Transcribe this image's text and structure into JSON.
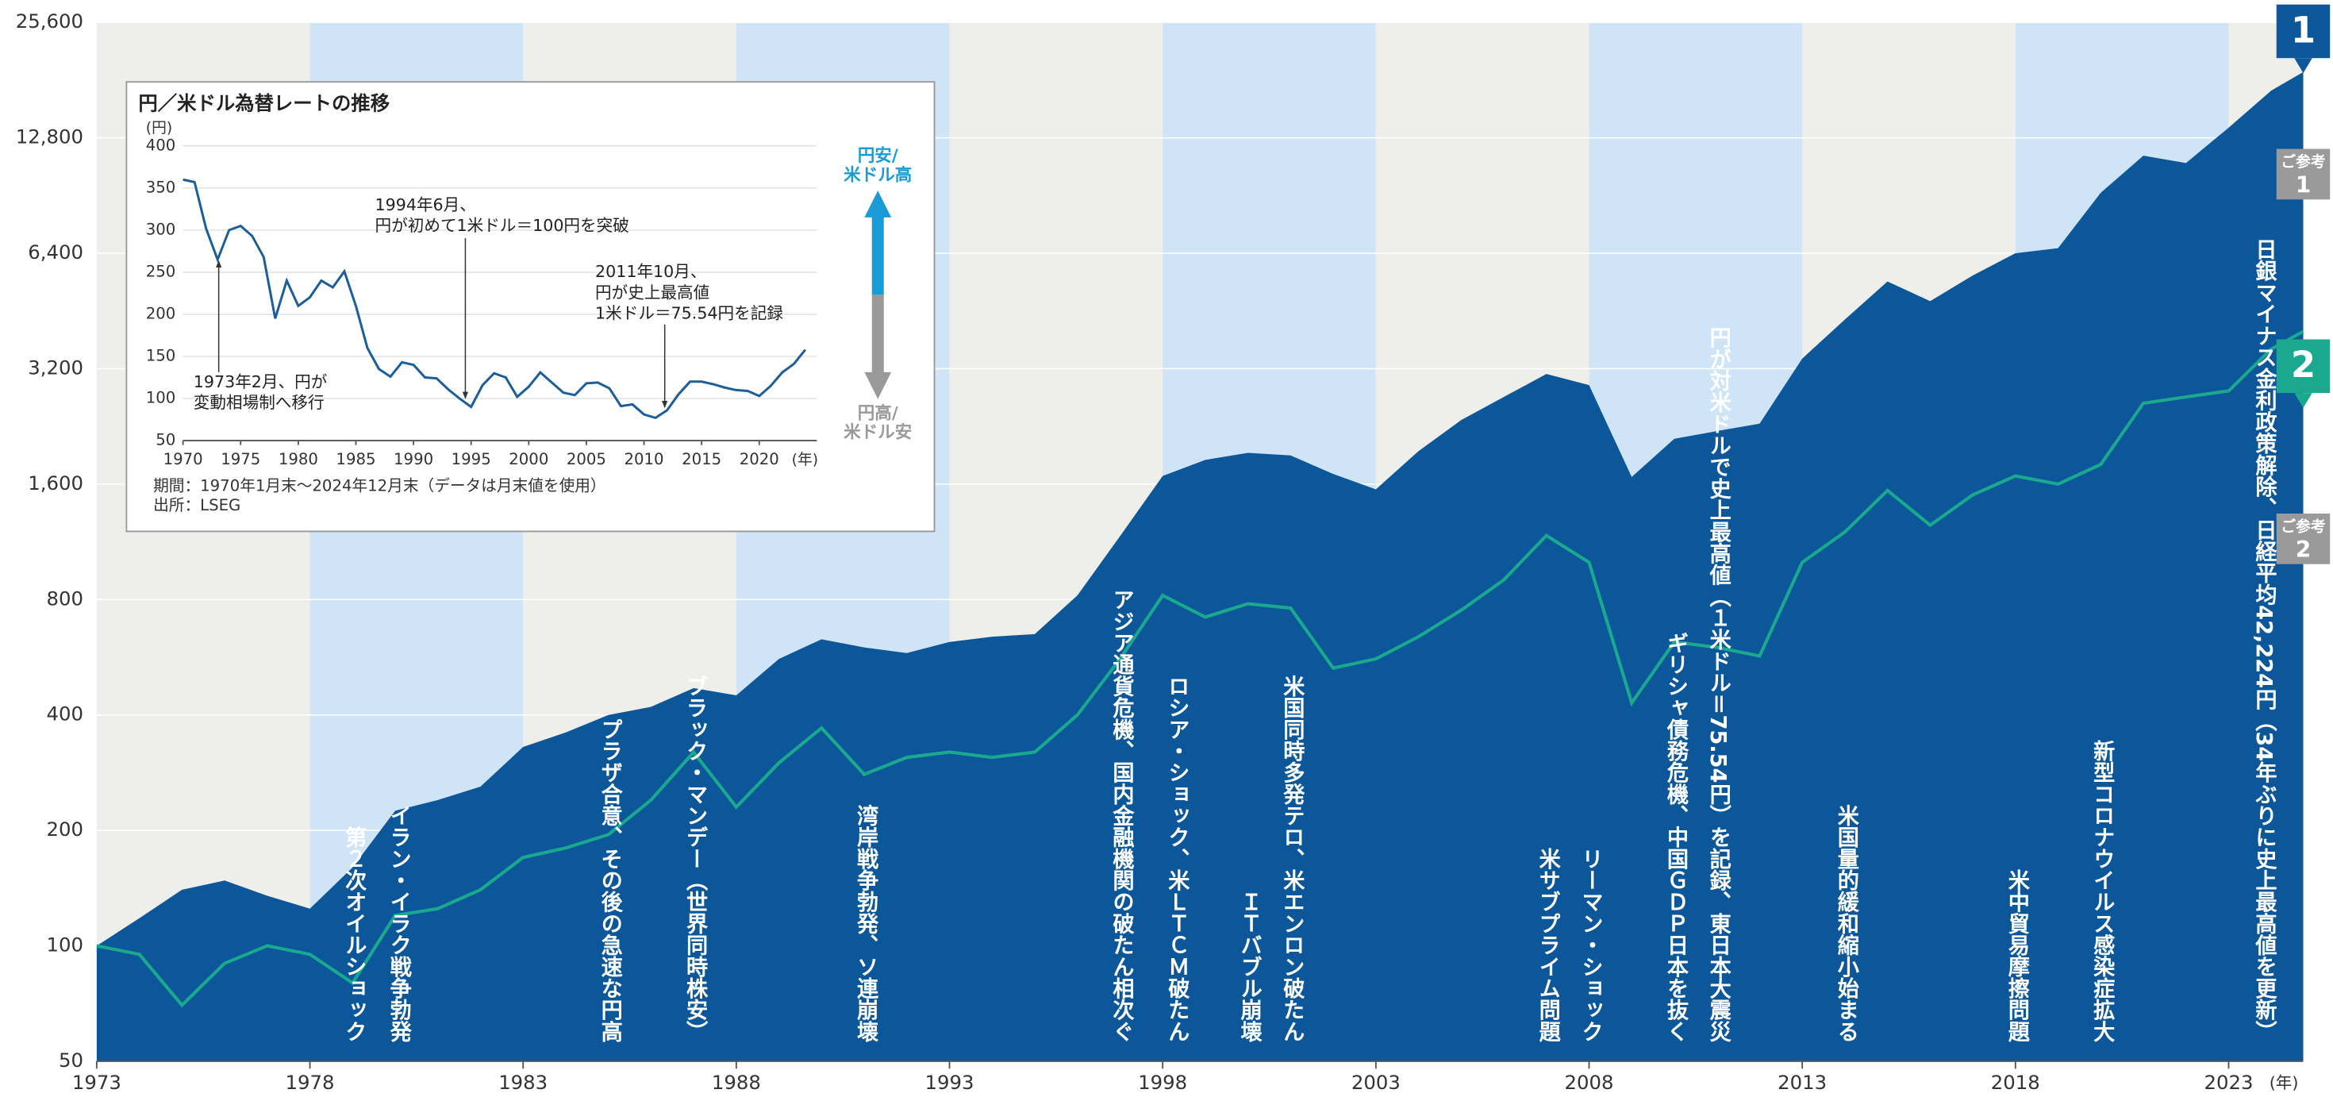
{
  "chart_data": [
    {
      "type": "area",
      "log_scale": true,
      "x": [
        1973,
        1974,
        1975,
        1976,
        1977,
        1978,
        1979,
        1980,
        1981,
        1982,
        1983,
        1984,
        1985,
        1986,
        1987,
        1988,
        1989,
        1990,
        1991,
        1992,
        1993,
        1994,
        1995,
        1996,
        1997,
        1998,
        1999,
        2000,
        2001,
        2002,
        2003,
        2004,
        2005,
        2006,
        2007,
        2008,
        2009,
        2010,
        2011,
        2012,
        2013,
        2014,
        2015,
        2016,
        2017,
        2018,
        2019,
        2020,
        2021,
        2022,
        2023,
        2024,
        2024.75
      ],
      "xlim": [
        1973,
        2024.75
      ],
      "xticks": [
        1973,
        1978,
        1983,
        1988,
        1993,
        1998,
        2003,
        2008,
        2013,
        2018,
        2023
      ],
      "x_label": "(年)",
      "ylim": [
        50,
        25600
      ],
      "yticks": [
        50,
        100,
        200,
        400,
        800,
        {
          "value": 1600,
          "label": "1,600"
        },
        {
          "value": 3200,
          "label": "3,200"
        },
        {
          "value": 6400,
          "label": "6,400"
        },
        {
          "value": 12800,
          "label": "12,800"
        },
        {
          "value": 25600,
          "label": "25,600"
        }
      ],
      "band_colors": [
        "#eeeeea",
        "#cfe4f6"
      ],
      "series": [
        {
          "name": "1",
          "type": "area",
          "color": "#0c5799",
          "values": [
            100,
            118,
            140,
            148,
            135,
            125,
            160,
            225,
            240,
            260,
            330,
            360,
            400,
            420,
            470,
            450,
            560,
            630,
            600,
            580,
            620,
            640,
            650,
            820,
            1170,
            1680,
            1850,
            1930,
            1900,
            1700,
            1550,
            1950,
            2350,
            2700,
            3100,
            2900,
            1670,
            2100,
            2200,
            2300,
            3400,
            4300,
            5400,
            4800,
            5600,
            6400,
            6600,
            9200,
            11500,
            11000,
            13600,
            17000,
            19000
          ]
        },
        {
          "name": "2",
          "type": "line",
          "color": "#1aa88f",
          "values": [
            100,
            95,
            70,
            90,
            100,
            95,
            80,
            120,
            125,
            140,
            170,
            180,
            195,
            240,
            320,
            230,
            300,
            370,
            280,
            310,
            320,
            310,
            320,
            400,
            560,
            820,
            720,
            780,
            760,
            530,
            560,
            640,
            750,
            900,
            1175,
            1000,
            430,
            620,
            600,
            570,
            1000,
            1200,
            1540,
            1250,
            1500,
            1680,
            1600,
            1800,
            2600,
            2700,
            2800,
            3600,
            4000
          ]
        }
      ],
      "references": [
        [
          "ご参考",
          "1"
        ],
        [
          "ご参考",
          "2"
        ]
      ],
      "annotations": [
        {
          "text": "第２次オイルショック",
          "x": 1979.0
        },
        {
          "text": "イラン・イラク戦争勃発",
          "x": 1980.05
        },
        {
          "text": "プラザ合意、その後の急速な円高",
          "x": 1985
        },
        {
          "text": "ブラック・マンデー（世界同時株安）",
          "x": 1987
        },
        {
          "text": "湾岸戦争勃発、ソ連崩壊",
          "x": 1991
        },
        {
          "text": "アジア通貨危機、国内金融機関の破たん相次ぐ",
          "x": 1997
        },
        {
          "text": "ロシア・ショック、米ＬＴＣＭ破たん",
          "x": 1998.3
        },
        {
          "text": "ＩＴバブル崩壊",
          "x": 2000
        },
        {
          "text": "米国同時多発テロ、米エンロン破たん",
          "x": 2001
        },
        {
          "text": "米サブプライム問題",
          "x": 2007
        },
        {
          "text": "リーマン・ショック",
          "x": 2008
        },
        {
          "text": "ギリシャ債務危機、中国ＧＤＰ日本を抜く",
          "x": 2010
        },
        {
          "text": "円が対米ドルで史上最高値（１米ドル＝75.54円）を記録、東日本大震災",
          "x": 2011
        },
        {
          "text": "米国量的緩和縮小始まる",
          "x": 2014
        },
        {
          "text": "米中貿易摩擦問題",
          "x": 2018
        },
        {
          "text": "新型コロナウイルス感染症拡大",
          "x": 2020
        },
        {
          "text": "日銀マイナス金利政策解除、日経平均42,224円（34年ぶりに史上最高値を更新）",
          "x": 2023.8
        }
      ]
    },
    {
      "type": "line",
      "title": "円／米ドル為替レートの推移",
      "unit_label": "(円)",
      "color": "#1b5e9a",
      "x": [
        1970,
        1971,
        1972,
        1973,
        1974,
        1975,
        1976,
        1977,
        1978,
        1979,
        1980,
        1981,
        1982,
        1983,
        1984,
        1985,
        1986,
        1987,
        1988,
        1989,
        1990,
        1991,
        1992,
        1993,
        1994,
        1995,
        1996,
        1997,
        1998,
        1999,
        2000,
        2001,
        2002,
        2003,
        2004,
        2005,
        2006,
        2007,
        2008,
        2009,
        2010,
        2011,
        2012,
        2013,
        2014,
        2015,
        2016,
        2017,
        2018,
        2019,
        2020,
        2021,
        2022,
        2023,
        2024
      ],
      "values": [
        360,
        357,
        302,
        265,
        300,
        305,
        293,
        268,
        195,
        240,
        210,
        220,
        240,
        232,
        251,
        210,
        160,
        135,
        126,
        143,
        140,
        125,
        124,
        111,
        100,
        90,
        116,
        130,
        125,
        102,
        114,
        131,
        119,
        107,
        104,
        118,
        119,
        112,
        91,
        93,
        81,
        77,
        86,
        105,
        120,
        120,
        117,
        113,
        110,
        109,
        103,
        115,
        131,
        141,
        158
      ],
      "xlim": [
        1970,
        2025
      ],
      "xticks": [
        1970,
        1975,
        1980,
        1985,
        1990,
        1995,
        2000,
        2005,
        2010,
        2015,
        2020
      ],
      "x_label": "(年)",
      "ylim": [
        50,
        400
      ],
      "yticks": [
        50,
        100,
        150,
        200,
        250,
        300,
        350,
        400
      ],
      "annotations": [
        {
          "lines": [
            "1973年2月、円が",
            "変動相場制へ移行"
          ],
          "x": 1973.1
        },
        {
          "lines": [
            "1994年6月、",
            "円が初めて1米ドル＝100円を突破"
          ],
          "x": 1994.5
        },
        {
          "lines": [
            "2011年10月、",
            "円が史上最高値",
            "1米ドル＝75.54円を記録"
          ],
          "x": 2011.8
        }
      ],
      "legend_arrow": {
        "up": [
          "円安/",
          "米ドル高"
        ],
        "up_color": "#1a9ad6",
        "down": [
          "円高/",
          "米ドル安"
        ],
        "down_color": "#999999"
      },
      "notes": [
        "期間：1970年1月末～2024年12月末（データは月末値を使用）",
        "出所：LSEG"
      ]
    }
  ]
}
